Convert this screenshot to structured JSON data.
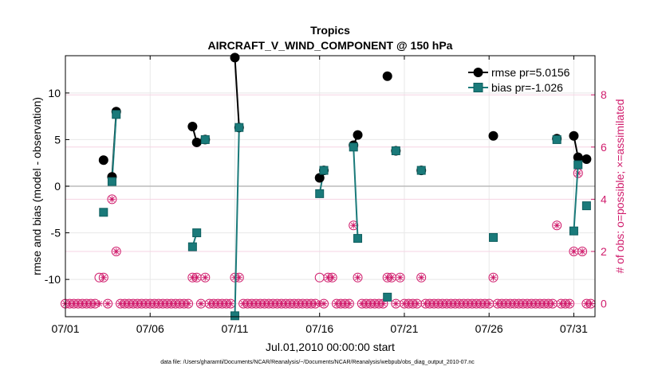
{
  "chart_data": {
    "type": "line",
    "title": "Tropics",
    "subtitle": "AIRCRAFT_V_WIND_COMPONENT @ 150 hPa",
    "xlabel": "Jul.01,2010 00:00:00 start",
    "ylabel": "rmse and bias (model - observation)",
    "y2label": "# of obs: o=possible; ×=assimilated",
    "footnote": "data file: /Users/gharamti/Documents/NCAR/Reanalysis/~/Documents/NCAR/Reanalysis/webpub/obs_diag_output_2010-07.nc",
    "xlim": [
      1,
      32.25
    ],
    "ylim": [
      -14,
      14
    ],
    "y2lim": [
      -0.5,
      9.5
    ],
    "xticks": [
      1,
      6,
      11,
      16,
      21,
      26,
      31
    ],
    "xticklabels": [
      "07/01",
      "07/06",
      "07/11",
      "07/16",
      "07/21",
      "07/26",
      "07/31"
    ],
    "yticks": [
      -10,
      -5,
      0,
      5,
      10
    ],
    "yticklabels": [
      "-10",
      "-5",
      "0",
      "5",
      "10"
    ],
    "y2ticks": [
      0,
      2,
      4,
      6,
      8
    ],
    "y2ticklabels": [
      "0",
      "2",
      "4",
      "6",
      "8"
    ],
    "colors": {
      "rmse": "#000000",
      "bias": "#1a7a7a",
      "obs": "#d01c6c",
      "zero": "#bbbbbb"
    },
    "series": [
      {
        "name": "rmse",
        "legend": "rmse pr=5.0156",
        "x": [
          3.25,
          3.75,
          4.0,
          8.5,
          8.75,
          9.25,
          11.0,
          11.25,
          16.0,
          16.25,
          18.0,
          18.25,
          20.0,
          20.5,
          22.0,
          26.25,
          30.0,
          31.0,
          31.25,
          31.75
        ],
        "values": [
          2.8,
          1.0,
          8.0,
          6.4,
          4.7,
          5.0,
          13.8,
          6.3,
          0.9,
          1.7,
          4.4,
          5.5,
          11.8,
          3.8,
          1.7,
          5.4,
          5.1,
          5.4,
          3.1,
          2.9
        ],
        "segments": [
          [
            1,
            2
          ],
          [
            3,
            4
          ],
          [
            6,
            7
          ],
          [
            8,
            9
          ],
          [
            10,
            11
          ],
          [
            17,
            18
          ]
        ]
      },
      {
        "name": "bias",
        "legend": "bias pr=-1.026",
        "x": [
          3.25,
          3.75,
          4.0,
          8.5,
          8.75,
          9.25,
          11.0,
          11.25,
          16.0,
          16.25,
          18.0,
          18.25,
          20.0,
          20.5,
          22.0,
          26.25,
          30.0,
          31.0,
          31.25,
          31.75
        ],
        "values": [
          -2.8,
          0.5,
          7.7,
          -6.5,
          -5.0,
          5.0,
          -13.9,
          6.3,
          -0.8,
          1.7,
          4.2,
          -5.6,
          -11.9,
          3.8,
          1.7,
          -5.5,
          5.0,
          -4.8,
          2.3,
          -2.1
        ],
        "segments": [
          [
            1,
            2
          ],
          [
            3,
            4
          ],
          [
            6,
            7
          ],
          [
            8,
            9
          ],
          [
            10,
            11
          ],
          [
            17,
            18
          ]
        ]
      },
      {
        "name": "obs_possible",
        "x": [
          1.0,
          1.25,
          1.5,
          1.75,
          2.0,
          2.25,
          2.5,
          2.75,
          3.0,
          3.25,
          3.5,
          3.75,
          4.0,
          4.25,
          4.5,
          4.75,
          5.0,
          5.25,
          5.5,
          5.75,
          6.0,
          6.25,
          6.5,
          6.75,
          7.0,
          7.25,
          7.5,
          7.75,
          8.0,
          8.25,
          8.5,
          8.75,
          9.0,
          9.25,
          9.5,
          9.75,
          10.0,
          10.25,
          10.5,
          10.75,
          11.0,
          11.25,
          11.5,
          11.75,
          12.0,
          12.25,
          12.5,
          12.75,
          13.0,
          13.25,
          13.5,
          13.75,
          14.0,
          14.25,
          14.5,
          14.75,
          15.0,
          15.25,
          15.5,
          15.75,
          16.0,
          16.25,
          16.5,
          16.75,
          17.0,
          17.25,
          17.5,
          17.75,
          18.0,
          18.25,
          18.5,
          18.75,
          19.0,
          19.25,
          19.5,
          19.75,
          20.0,
          20.25,
          20.5,
          20.75,
          21.0,
          21.25,
          21.5,
          21.75,
          22.0,
          22.25,
          22.5,
          22.75,
          23.0,
          23.25,
          23.5,
          23.75,
          24.0,
          24.25,
          24.5,
          24.75,
          25.0,
          25.25,
          25.5,
          25.75,
          26.0,
          26.25,
          26.5,
          26.75,
          27.0,
          27.25,
          27.5,
          27.75,
          28.0,
          28.25,
          28.5,
          28.75,
          29.0,
          29.25,
          29.5,
          29.75,
          30.0,
          30.25,
          30.5,
          30.75,
          31.0,
          31.25,
          31.5,
          31.75,
          32.0
        ],
        "values": [
          0,
          0,
          0,
          0,
          0,
          0,
          0,
          0,
          1,
          1,
          0,
          4,
          2,
          0,
          0,
          0,
          0,
          0,
          0,
          0,
          0,
          0,
          0,
          0,
          0,
          0,
          0,
          0,
          0,
          0,
          1,
          1,
          0,
          1,
          0,
          0,
          0,
          0,
          0,
          0,
          1,
          1,
          0,
          0,
          0,
          0,
          0,
          0,
          0,
          0,
          0,
          0,
          0,
          0,
          0,
          0,
          0,
          0,
          0,
          0,
          1,
          0,
          1,
          1,
          0,
          0,
          0,
          0,
          3,
          1,
          0,
          0,
          0,
          0,
          0,
          0,
          1,
          1,
          0,
          1,
          0,
          0,
          0,
          0,
          1,
          0,
          0,
          0,
          0,
          0,
          0,
          0,
          0,
          0,
          0,
          0,
          0,
          0,
          0,
          0,
          0,
          1,
          0,
          0,
          0,
          0,
          0,
          0,
          0,
          0,
          0,
          0,
          0,
          0,
          0,
          0,
          3,
          0,
          0,
          0,
          2,
          5,
          2,
          0,
          0
        ]
      },
      {
        "name": "obs_assimilated",
        "x": [
          1.0,
          1.25,
          1.5,
          1.75,
          2.0,
          2.25,
          2.5,
          2.75,
          3.0,
          3.25,
          3.5,
          3.75,
          4.0,
          4.25,
          4.5,
          4.75,
          5.0,
          5.25,
          5.5,
          5.75,
          6.0,
          6.25,
          6.5,
          6.75,
          7.0,
          7.25,
          7.5,
          7.75,
          8.0,
          8.25,
          8.5,
          8.75,
          9.0,
          9.25,
          9.5,
          9.75,
          10.0,
          10.25,
          10.5,
          10.75,
          11.0,
          11.25,
          11.5,
          11.75,
          12.0,
          12.25,
          12.5,
          12.75,
          13.0,
          13.25,
          13.5,
          13.75,
          14.0,
          14.25,
          14.5,
          14.75,
          15.0,
          15.25,
          15.5,
          15.75,
          16.0,
          16.25,
          16.5,
          16.75,
          17.0,
          17.25,
          17.5,
          17.75,
          18.0,
          18.25,
          18.5,
          18.75,
          19.0,
          19.25,
          19.5,
          19.75,
          20.0,
          20.25,
          20.5,
          20.75,
          21.0,
          21.25,
          21.5,
          21.75,
          22.0,
          22.25,
          22.5,
          22.75,
          23.0,
          23.25,
          23.5,
          23.75,
          24.0,
          24.25,
          24.5,
          24.75,
          25.0,
          25.25,
          25.5,
          25.75,
          26.0,
          26.25,
          26.5,
          26.75,
          27.0,
          27.25,
          27.5,
          27.75,
          28.0,
          28.25,
          28.5,
          28.75,
          29.0,
          29.25,
          29.5,
          29.75,
          30.0,
          30.25,
          30.5,
          30.75,
          31.0,
          31.25,
          31.5,
          31.75,
          32.0
        ],
        "values": [
          0,
          0,
          0,
          0,
          0,
          0,
          0,
          0,
          0,
          1,
          0,
          4,
          2,
          0,
          0,
          0,
          0,
          0,
          0,
          0,
          0,
          0,
          0,
          0,
          0,
          0,
          0,
          0,
          0,
          0,
          1,
          1,
          0,
          1,
          0,
          0,
          0,
          0,
          0,
          0,
          1,
          1,
          0,
          0,
          0,
          0,
          0,
          0,
          0,
          0,
          0,
          0,
          0,
          0,
          0,
          0,
          0,
          0,
          0,
          0,
          0,
          0,
          1,
          1,
          0,
          0,
          0,
          0,
          3,
          1,
          0,
          0,
          0,
          0,
          0,
          0,
          1,
          1,
          0,
          1,
          0,
          0,
          0,
          0,
          1,
          0,
          0,
          0,
          0,
          0,
          0,
          0,
          0,
          0,
          0,
          0,
          0,
          0,
          0,
          0,
          0,
          1,
          0,
          0,
          0,
          0,
          0,
          0,
          0,
          0,
          0,
          0,
          0,
          0,
          0,
          0,
          3,
          0,
          0,
          0,
          2,
          5,
          2,
          0,
          0
        ]
      }
    ]
  }
}
